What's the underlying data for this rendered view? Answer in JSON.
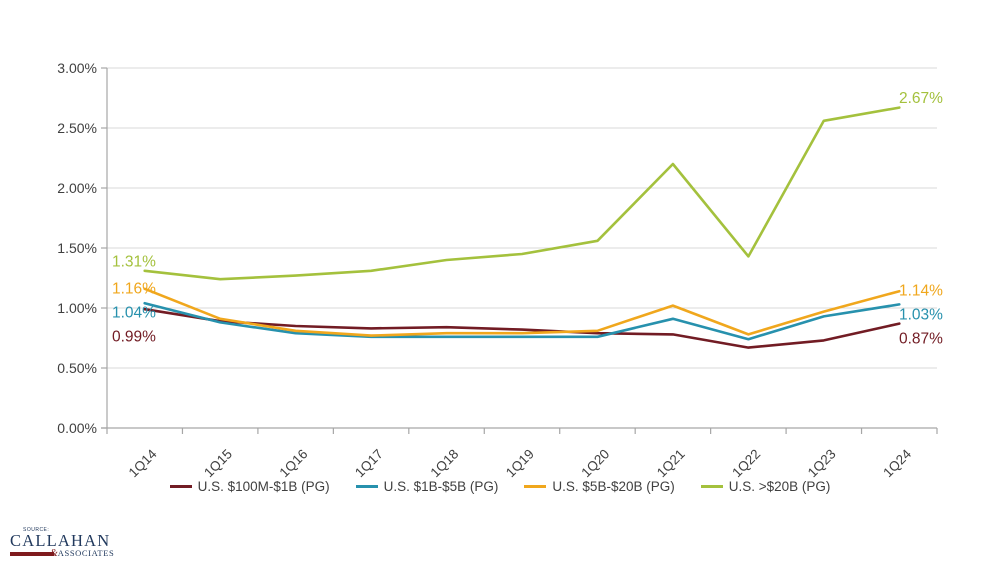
{
  "colors": {
    "background": "#FFFFFF",
    "grid": "#D9D9D9",
    "axis": "#A6A6A6",
    "tick_label": "#404040",
    "legend_text": "#404040",
    "logo_navy": "#223A5E",
    "logo_maroon": "#7F1B1E"
  },
  "chart_data": {
    "type": "line",
    "title": "",
    "xlabel": "",
    "ylabel": "",
    "ylim": [
      0,
      3
    ],
    "grid": true,
    "legend_position": "bottom",
    "y_ticks": [
      "3.00%",
      "2.50%",
      "2.00%",
      "1.50%",
      "1.00%",
      "0.50%",
      "0.00%"
    ],
    "y_tick_values": [
      3.0,
      2.5,
      2.0,
      1.5,
      1.0,
      0.5,
      0.0
    ],
    "categories": [
      "1Q14",
      "1Q15",
      "1Q16",
      "1Q17",
      "1Q18",
      "1Q19",
      "1Q20",
      "1Q21",
      "1Q22",
      "1Q23",
      "1Q24"
    ],
    "series": [
      {
        "name": "U.S. $100M-$1B (PG)",
        "color": "#721C24",
        "values": [
          0.99,
          0.89,
          0.85,
          0.83,
          0.84,
          0.82,
          0.79,
          0.78,
          0.67,
          0.73,
          0.87
        ],
        "first_label": "0.99%",
        "last_label": "0.87%"
      },
      {
        "name": "U.S. $1B-$5B (PG)",
        "color": "#2791AD",
        "values": [
          1.04,
          0.88,
          0.79,
          0.76,
          0.76,
          0.76,
          0.76,
          0.91,
          0.74,
          0.93,
          1.03
        ],
        "first_label": "1.04%",
        "last_label": "1.03%"
      },
      {
        "name": "U.S. $5B-$20B (PG)",
        "color": "#F0A71D",
        "values": [
          1.16,
          0.91,
          0.81,
          0.77,
          0.79,
          0.79,
          0.81,
          1.02,
          0.78,
          0.97,
          1.14
        ],
        "first_label": "1.16%",
        "last_label": "1.14%"
      },
      {
        "name": "U.S. >$20B (PG)",
        "color": "#A4C13D",
        "values": [
          1.31,
          1.24,
          1.27,
          1.31,
          1.4,
          1.45,
          1.56,
          2.2,
          1.43,
          2.56,
          2.67
        ],
        "first_label": "1.31%",
        "last_label": "2.67%"
      }
    ]
  },
  "footer": {
    "source_label": "SOURCE:",
    "brand": "CALLAHAN",
    "brand_amp": "&",
    "brand_associates": "ASSOCIATES"
  }
}
